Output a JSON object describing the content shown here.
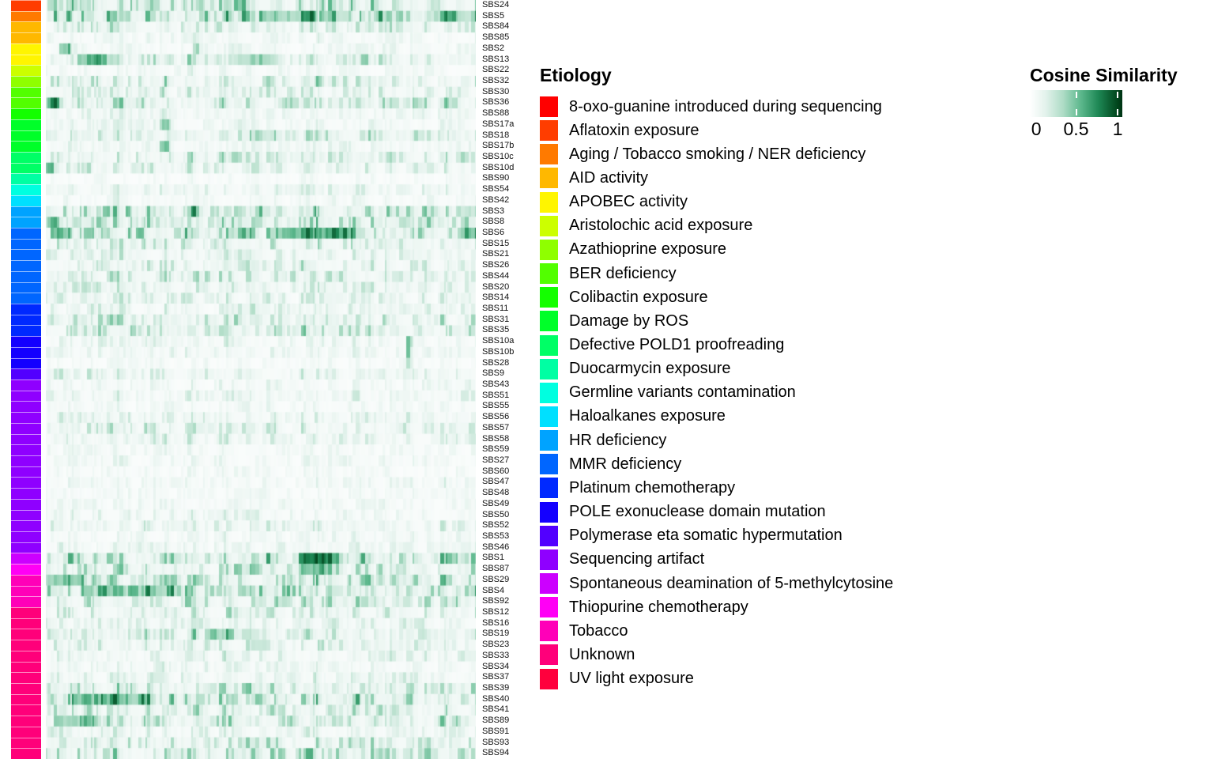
{
  "chart_data": {
    "type": "heatmap",
    "title": "",
    "value_label": "Cosine Similarity",
    "value_domain": [
      0,
      1
    ],
    "grid": false,
    "columns": {
      "count": 155,
      "labels_shown": false,
      "note": "unlabeled sample columns of varying width"
    },
    "colormap_stops": [
      [
        0.0,
        "#FCFDFD"
      ],
      [
        0.18,
        "#E3F2EC"
      ],
      [
        0.38,
        "#AEDCC6"
      ],
      [
        0.58,
        "#5DB88D"
      ],
      [
        0.78,
        "#1E8855"
      ],
      [
        1.0,
        "#00441B"
      ]
    ],
    "render_seed": 1337,
    "rows": [
      {
        "label": "SBS24",
        "etiology": "Aflatoxin exposure",
        "annotation_color": "#FF3D00",
        "density": 0.38,
        "hotspots": []
      },
      {
        "label": "SBS5",
        "etiology": "Aging / Tobacco smoking / NER deficiency",
        "annotation_color": "#FF7A00",
        "density": 0.5,
        "hotspots": [
          [
            0.5,
            0.12,
            0.3
          ],
          [
            0.88,
            0.12,
            0.25
          ]
        ]
      },
      {
        "label": "SBS84",
        "etiology": "AID activity",
        "annotation_color": "#FFB800",
        "density": 0.28,
        "hotspots": []
      },
      {
        "label": "SBS85",
        "etiology": "AID activity",
        "annotation_color": "#FFB800",
        "density": 0.12,
        "hotspots": []
      },
      {
        "label": "SBS2",
        "etiology": "APOBEC activity",
        "annotation_color": "#FFF500",
        "density": 0.13,
        "hotspots": [
          [
            0.035,
            0.02,
            0.5
          ],
          [
            0.345,
            0.015,
            0.55
          ]
        ]
      },
      {
        "label": "SBS13",
        "etiology": "APOBEC activity",
        "annotation_color": "#FFF500",
        "density": 0.3,
        "hotspots": [
          [
            0.07,
            0.07,
            0.4
          ],
          [
            0.44,
            0.09,
            0.3
          ]
        ]
      },
      {
        "label": "SBS22",
        "etiology": "Aristolochic acid exposure",
        "annotation_color": "#CCFF00",
        "density": 0.12,
        "hotspots": []
      },
      {
        "label": "SBS32",
        "etiology": "Azathioprine exposure",
        "annotation_color": "#8FFF00",
        "density": 0.28,
        "hotspots": []
      },
      {
        "label": "SBS30",
        "etiology": "BER deficiency",
        "annotation_color": "#52FF00",
        "density": 0.22,
        "hotspots": []
      },
      {
        "label": "SBS36",
        "etiology": "BER deficiency",
        "annotation_color": "#52FF00",
        "density": 0.32,
        "hotspots": [
          [
            0.0,
            0.03,
            0.55
          ],
          [
            0.54,
            0.05,
            0.28
          ]
        ]
      },
      {
        "label": "SBS88",
        "etiology": "Colibactin exposure",
        "annotation_color": "#14FF00",
        "density": 0.15,
        "hotspots": []
      },
      {
        "label": "SBS17a",
        "etiology": "Damage by ROS",
        "annotation_color": "#00FF29",
        "density": 0.14,
        "hotspots": [
          [
            0.265,
            0.02,
            0.55
          ]
        ]
      },
      {
        "label": "SBS18",
        "etiology": "Damage by ROS",
        "annotation_color": "#00FF29",
        "density": 0.33,
        "hotspots": []
      },
      {
        "label": "SBS17b",
        "etiology": "Damage by ROS",
        "annotation_color": "#00FF29",
        "density": 0.14,
        "hotspots": [
          [
            0.265,
            0.02,
            0.6
          ]
        ]
      },
      {
        "label": "SBS10c",
        "etiology": "Defective POLD1 proofreading",
        "annotation_color": "#00FF66",
        "density": 0.28,
        "hotspots": []
      },
      {
        "label": "SBS10d",
        "etiology": "Defective POLD1 proofreading",
        "annotation_color": "#00FF66",
        "density": 0.22,
        "hotspots": [
          [
            0.0,
            0.015,
            0.6
          ]
        ]
      },
      {
        "label": "SBS90",
        "etiology": "Duocarmycin exposure",
        "annotation_color": "#00FFA3",
        "density": 0.08,
        "hotspots": []
      },
      {
        "label": "SBS54",
        "etiology": "Germline variants contamination",
        "annotation_color": "#00FFE0",
        "density": 0.18,
        "hotspots": []
      },
      {
        "label": "SBS42",
        "etiology": "Haloalkanes exposure",
        "annotation_color": "#00E0FF",
        "density": 0.12,
        "hotspots": []
      },
      {
        "label": "SBS3",
        "etiology": "HR deficiency",
        "annotation_color": "#00A3FF",
        "density": 0.44,
        "hotspots": []
      },
      {
        "label": "SBS8",
        "etiology": "HR deficiency",
        "annotation_color": "#00A3FF",
        "density": 0.37,
        "hotspots": [
          [
            0.0,
            0.03,
            0.4
          ]
        ]
      },
      {
        "label": "SBS6",
        "etiology": "MMR deficiency",
        "annotation_color": "#0066FF",
        "density": 0.42,
        "hotspots": [
          [
            0.55,
            0.17,
            0.5
          ],
          [
            0.01,
            0.05,
            0.4
          ],
          [
            0.96,
            0.04,
            0.4
          ]
        ]
      },
      {
        "label": "SBS15",
        "etiology": "MMR deficiency",
        "annotation_color": "#0066FF",
        "density": 0.3,
        "hotspots": []
      },
      {
        "label": "SBS21",
        "etiology": "MMR deficiency",
        "annotation_color": "#0066FF",
        "density": 0.22,
        "hotspots": []
      },
      {
        "label": "SBS26",
        "etiology": "MMR deficiency",
        "annotation_color": "#0066FF",
        "density": 0.25,
        "hotspots": []
      },
      {
        "label": "SBS44",
        "etiology": "MMR deficiency",
        "annotation_color": "#0066FF",
        "density": 0.3,
        "hotspots": []
      },
      {
        "label": "SBS20",
        "etiology": "MMR deficiency",
        "annotation_color": "#0066FF",
        "density": 0.26,
        "hotspots": []
      },
      {
        "label": "SBS14",
        "etiology": "MMR deficiency",
        "annotation_color": "#0066FF",
        "density": 0.2,
        "hotspots": []
      },
      {
        "label": "SBS11",
        "etiology": "Platinum chemotherapy",
        "annotation_color": "#0029FF",
        "density": 0.2,
        "hotspots": []
      },
      {
        "label": "SBS31",
        "etiology": "Platinum chemotherapy",
        "annotation_color": "#0029FF",
        "density": 0.3,
        "hotspots": []
      },
      {
        "label": "SBS35",
        "etiology": "Platinum chemotherapy",
        "annotation_color": "#0029FF",
        "density": 0.32,
        "hotspots": []
      },
      {
        "label": "SBS10a",
        "etiology": "POLE exonuclease domain mutation",
        "annotation_color": "#1400FF",
        "density": 0.15,
        "hotspots": [
          [
            0.835,
            0.015,
            0.75
          ]
        ]
      },
      {
        "label": "SBS10b",
        "etiology": "POLE exonuclease domain mutation",
        "annotation_color": "#1400FF",
        "density": 0.15,
        "hotspots": [
          [
            0.835,
            0.015,
            0.8
          ]
        ]
      },
      {
        "label": "SBS28",
        "etiology": "POLE exonuclease domain mutation",
        "annotation_color": "#1400FF",
        "density": 0.08,
        "hotspots": [
          [
            0.835,
            0.012,
            0.45
          ]
        ]
      },
      {
        "label": "SBS9",
        "etiology": "Polymerase eta somatic hypermutation",
        "annotation_color": "#5200FF",
        "density": 0.2,
        "hotspots": []
      },
      {
        "label": "SBS43",
        "etiology": "Sequencing artifact",
        "annotation_color": "#8F00FF",
        "density": 0.13,
        "hotspots": []
      },
      {
        "label": "SBS51",
        "etiology": "Sequencing artifact",
        "annotation_color": "#8F00FF",
        "density": 0.17,
        "hotspots": []
      },
      {
        "label": "SBS55",
        "etiology": "Sequencing artifact",
        "annotation_color": "#8F00FF",
        "density": 0.11,
        "hotspots": []
      },
      {
        "label": "SBS56",
        "etiology": "Sequencing artifact",
        "annotation_color": "#8F00FF",
        "density": 0.2,
        "hotspots": []
      },
      {
        "label": "SBS57",
        "etiology": "Sequencing artifact",
        "annotation_color": "#8F00FF",
        "density": 0.24,
        "hotspots": []
      },
      {
        "label": "SBS58",
        "etiology": "Sequencing artifact",
        "annotation_color": "#8F00FF",
        "density": 0.19,
        "hotspots": []
      },
      {
        "label": "SBS59",
        "etiology": "Sequencing artifact",
        "annotation_color": "#8F00FF",
        "density": 0.1,
        "hotspots": []
      },
      {
        "label": "SBS27",
        "etiology": "Sequencing artifact",
        "annotation_color": "#8F00FF",
        "density": 0.12,
        "hotspots": []
      },
      {
        "label": "SBS60",
        "etiology": "Sequencing artifact",
        "annotation_color": "#8F00FF",
        "density": 0.1,
        "hotspots": []
      },
      {
        "label": "SBS47",
        "etiology": "Sequencing artifact",
        "annotation_color": "#8F00FF",
        "density": 0.13,
        "hotspots": []
      },
      {
        "label": "SBS48",
        "etiology": "Sequencing artifact",
        "annotation_color": "#8F00FF",
        "density": 0.1,
        "hotspots": []
      },
      {
        "label": "SBS49",
        "etiology": "Sequencing artifact",
        "annotation_color": "#8F00FF",
        "density": 0.12,
        "hotspots": []
      },
      {
        "label": "SBS50",
        "etiology": "Sequencing artifact",
        "annotation_color": "#8F00FF",
        "density": 0.15,
        "hotspots": []
      },
      {
        "label": "SBS52",
        "etiology": "Sequencing artifact",
        "annotation_color": "#8F00FF",
        "density": 0.2,
        "hotspots": []
      },
      {
        "label": "SBS53",
        "etiology": "Sequencing artifact",
        "annotation_color": "#8F00FF",
        "density": 0.12,
        "hotspots": []
      },
      {
        "label": "SBS46",
        "etiology": "Sequencing artifact",
        "annotation_color": "#8F00FF",
        "density": 0.15,
        "hotspots": []
      },
      {
        "label": "SBS1",
        "etiology": "Spontaneous deamination of 5-methylcytosine",
        "annotation_color": "#CC00FF",
        "density": 0.42,
        "hotspots": [
          [
            0.59,
            0.08,
            0.8
          ]
        ]
      },
      {
        "label": "SBS87",
        "etiology": "Thiopurine chemotherapy",
        "annotation_color": "#FF00F5",
        "density": 0.33,
        "hotspots": [
          [
            0.59,
            0.08,
            0.5
          ]
        ]
      },
      {
        "label": "SBS29",
        "etiology": "Tobacco",
        "annotation_color": "#FF00B8",
        "density": 0.38,
        "hotspots": [
          [
            0.0,
            0.09,
            0.45
          ]
        ]
      },
      {
        "label": "SBS4",
        "etiology": "Tobacco",
        "annotation_color": "#FF00B8",
        "density": 0.46,
        "hotspots": [
          [
            0.08,
            0.22,
            0.28
          ]
        ]
      },
      {
        "label": "SBS92",
        "etiology": "Tobacco",
        "annotation_color": "#FF00B8",
        "density": 0.34,
        "hotspots": []
      },
      {
        "label": "SBS12",
        "etiology": "Unknown",
        "annotation_color": "#FF007A",
        "density": 0.26,
        "hotspots": []
      },
      {
        "label": "SBS16",
        "etiology": "Unknown",
        "annotation_color": "#FF007A",
        "density": 0.2,
        "hotspots": []
      },
      {
        "label": "SBS19",
        "etiology": "Unknown",
        "annotation_color": "#FF007A",
        "density": 0.3,
        "hotspots": [
          [
            0.37,
            0.07,
            0.35
          ]
        ]
      },
      {
        "label": "SBS23",
        "etiology": "Unknown",
        "annotation_color": "#FF007A",
        "density": 0.25,
        "hotspots": []
      },
      {
        "label": "SBS33",
        "etiology": "Unknown",
        "annotation_color": "#FF007A",
        "density": 0.2,
        "hotspots": []
      },
      {
        "label": "SBS34",
        "etiology": "Unknown",
        "annotation_color": "#FF007A",
        "density": 0.15,
        "hotspots": []
      },
      {
        "label": "SBS37",
        "etiology": "Unknown",
        "annotation_color": "#FF007A",
        "density": 0.2,
        "hotspots": []
      },
      {
        "label": "SBS39",
        "etiology": "Unknown",
        "annotation_color": "#FF007A",
        "density": 0.32,
        "hotspots": []
      },
      {
        "label": "SBS40",
        "etiology": "Unknown",
        "annotation_color": "#FF007A",
        "density": 0.42,
        "hotspots": [
          [
            0.06,
            0.18,
            0.4
          ]
        ]
      },
      {
        "label": "SBS41",
        "etiology": "Unknown",
        "annotation_color": "#FF007A",
        "density": 0.3,
        "hotspots": []
      },
      {
        "label": "SBS89",
        "etiology": "Unknown",
        "annotation_color": "#FF007A",
        "density": 0.34,
        "hotspots": [
          [
            0.02,
            0.1,
            0.38
          ]
        ]
      },
      {
        "label": "SBS91",
        "etiology": "Unknown",
        "annotation_color": "#FF007A",
        "density": 0.2,
        "hotspots": []
      },
      {
        "label": "SBS93",
        "etiology": "Unknown",
        "annotation_color": "#FF007A",
        "density": 0.3,
        "hotspots": []
      },
      {
        "label": "SBS94",
        "etiology": "Unknown",
        "annotation_color": "#FF007A",
        "density": 0.38,
        "hotspots": []
      }
    ]
  },
  "legends": {
    "etiology": {
      "title": "Etiology",
      "entries": [
        {
          "label": "8-oxo-guanine introduced during sequencing",
          "color": "#FF0000"
        },
        {
          "label": "Aflatoxin exposure",
          "color": "#FF3D00"
        },
        {
          "label": "Aging / Tobacco smoking / NER deficiency",
          "color": "#FF7A00"
        },
        {
          "label": "AID activity",
          "color": "#FFB800"
        },
        {
          "label": "APOBEC activity",
          "color": "#FFF500"
        },
        {
          "label": "Aristolochic acid exposure",
          "color": "#CCFF00"
        },
        {
          "label": "Azathioprine exposure",
          "color": "#8FFF00"
        },
        {
          "label": "BER deficiency",
          "color": "#52FF00"
        },
        {
          "label": "Colibactin exposure",
          "color": "#14FF00"
        },
        {
          "label": "Damage by ROS",
          "color": "#00FF29"
        },
        {
          "label": "Defective POLD1 proofreading",
          "color": "#00FF66"
        },
        {
          "label": "Duocarmycin exposure",
          "color": "#00FFA3"
        },
        {
          "label": "Germline variants contamination",
          "color": "#00FFE0"
        },
        {
          "label": "Haloalkanes exposure",
          "color": "#00E0FF"
        },
        {
          "label": "HR deficiency",
          "color": "#00A3FF"
        },
        {
          "label": "MMR deficiency",
          "color": "#0066FF"
        },
        {
          "label": "Platinum chemotherapy",
          "color": "#0029FF"
        },
        {
          "label": "POLE exonuclease domain mutation",
          "color": "#1400FF"
        },
        {
          "label": "Polymerase eta somatic hypermutation",
          "color": "#5200FF"
        },
        {
          "label": "Sequencing artifact",
          "color": "#8F00FF"
        },
        {
          "label": "Spontaneous deamination of 5-methylcytosine",
          "color": "#CC00FF"
        },
        {
          "label": "Thiopurine chemotherapy",
          "color": "#FF00F5"
        },
        {
          "label": "Tobacco",
          "color": "#FF00B8"
        },
        {
          "label": "Unknown",
          "color": "#FF007A"
        },
        {
          "label": "UV light exposure",
          "color": "#FF003D"
        }
      ]
    },
    "cosine": {
      "title": "Cosine Similarity",
      "gradient": [
        "#FFFFFF",
        "#00441B"
      ],
      "ticks": [
        {
          "label": "0",
          "pos": 0.07
        },
        {
          "label": "0.5",
          "pos": 0.5
        },
        {
          "label": "1",
          "pos": 0.95
        }
      ],
      "dash_positions": [
        0.5,
        0.95
      ]
    }
  }
}
